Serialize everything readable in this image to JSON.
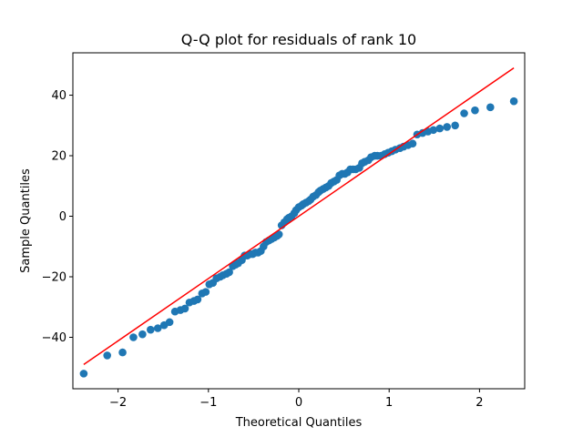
{
  "chart_data": {
    "type": "scatter",
    "title": "Q-Q plot for residuals of rank 10",
    "xlabel": "Theoretical Quantiles",
    "ylabel": "Sample Quantiles",
    "xlim": [
      -2.5,
      2.5
    ],
    "ylim": [
      -57,
      54
    ],
    "xticks": [
      -2,
      -1,
      0,
      1,
      2
    ],
    "xtick_labels": [
      "−2",
      "−1",
      "0",
      "1",
      "2"
    ],
    "yticks": [
      -40,
      -20,
      0,
      20,
      40
    ],
    "ytick_labels": [
      "−40",
      "−20",
      "0",
      "20",
      "40"
    ],
    "grid": false,
    "legend": "none",
    "series": [
      {
        "kind": "points",
        "color": "#1f77b4",
        "points": [
          [
            -2.38,
            -52
          ],
          [
            -2.12,
            -46
          ],
          [
            -1.95,
            -45
          ],
          [
            -1.83,
            -40
          ],
          [
            -1.73,
            -39
          ],
          [
            -1.64,
            -37.5
          ],
          [
            -1.56,
            -37
          ],
          [
            -1.49,
            -36
          ],
          [
            -1.43,
            -35
          ],
          [
            -1.37,
            -31.5
          ],
          [
            -1.31,
            -31
          ],
          [
            -1.26,
            -30.5
          ],
          [
            -1.21,
            -28.5
          ],
          [
            -1.16,
            -28
          ],
          [
            -1.12,
            -27.5
          ],
          [
            -1.07,
            -25.5
          ],
          [
            -1.03,
            -25
          ],
          [
            -0.99,
            -22.5
          ],
          [
            -0.95,
            -22
          ],
          [
            -0.91,
            -20.5
          ],
          [
            -0.87,
            -20
          ],
          [
            -0.84,
            -19.5
          ],
          [
            -0.8,
            -19
          ],
          [
            -0.77,
            -18.5
          ],
          [
            -0.73,
            -16.5
          ],
          [
            -0.7,
            -16
          ],
          [
            -0.67,
            -15.5
          ],
          [
            -0.63,
            -14.5
          ],
          [
            -0.6,
            -13
          ],
          [
            -0.57,
            -13
          ],
          [
            -0.54,
            -12.5
          ],
          [
            -0.51,
            -12.5
          ],
          [
            -0.48,
            -12
          ],
          [
            -0.45,
            -12
          ],
          [
            -0.42,
            -11.5
          ],
          [
            -0.39,
            -10
          ],
          [
            -0.36,
            -8.5
          ],
          [
            -0.33,
            -8
          ],
          [
            -0.3,
            -7.5
          ],
          [
            -0.27,
            -7
          ],
          [
            -0.24,
            -6.5
          ],
          [
            -0.22,
            -6
          ],
          [
            -0.19,
            -3
          ],
          [
            -0.16,
            -2
          ],
          [
            -0.13,
            -1
          ],
          [
            -0.11,
            -0.5
          ],
          [
            -0.08,
            0
          ],
          [
            -0.05,
            1
          ],
          [
            -0.03,
            2
          ],
          [
            0.0,
            3
          ],
          [
            0.03,
            3.5
          ],
          [
            0.05,
            4
          ],
          [
            0.08,
            4.5
          ],
          [
            0.11,
            5
          ],
          [
            0.13,
            5.5
          ],
          [
            0.16,
            6.5
          ],
          [
            0.19,
            7
          ],
          [
            0.22,
            8
          ],
          [
            0.24,
            8.5
          ],
          [
            0.27,
            9
          ],
          [
            0.3,
            9.5
          ],
          [
            0.33,
            10
          ],
          [
            0.36,
            11
          ],
          [
            0.39,
            11.5
          ],
          [
            0.42,
            12
          ],
          [
            0.45,
            13.5
          ],
          [
            0.48,
            14
          ],
          [
            0.51,
            14
          ],
          [
            0.54,
            14.5
          ],
          [
            0.57,
            15.5
          ],
          [
            0.6,
            15.5
          ],
          [
            0.63,
            15.5
          ],
          [
            0.67,
            16
          ],
          [
            0.7,
            17.5
          ],
          [
            0.73,
            18
          ],
          [
            0.77,
            18.5
          ],
          [
            0.8,
            19.5
          ],
          [
            0.84,
            20
          ],
          [
            0.87,
            20
          ],
          [
            0.91,
            20
          ],
          [
            0.95,
            20.5
          ],
          [
            0.99,
            21
          ],
          [
            1.03,
            21.5
          ],
          [
            1.07,
            22
          ],
          [
            1.12,
            22.5
          ],
          [
            1.16,
            23
          ],
          [
            1.21,
            23.5
          ],
          [
            1.26,
            24
          ],
          [
            1.31,
            27
          ],
          [
            1.37,
            27.5
          ],
          [
            1.43,
            28
          ],
          [
            1.49,
            28.5
          ],
          [
            1.56,
            29
          ],
          [
            1.64,
            29.5
          ],
          [
            1.73,
            30
          ],
          [
            1.83,
            34
          ],
          [
            1.95,
            35
          ],
          [
            2.12,
            36
          ],
          [
            2.38,
            38
          ]
        ]
      },
      {
        "kind": "line",
        "color": "#ff0000",
        "points": [
          [
            -2.38,
            -49
          ],
          [
            2.38,
            49
          ]
        ]
      }
    ]
  }
}
